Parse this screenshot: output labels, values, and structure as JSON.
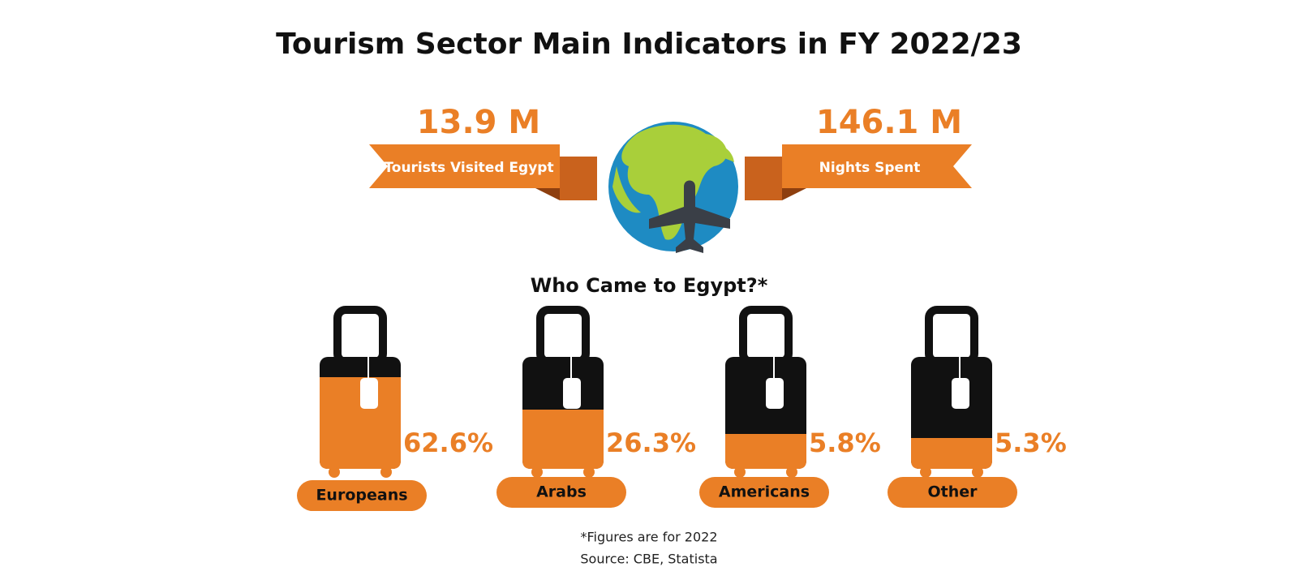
{
  "title": "Tourism Sector Main Indicators in FY 2022/23",
  "indicators": [
    {
      "value": "13.9 M",
      "label": "Tourists Visited Egypt"
    },
    {
      "value": "146.1 M",
      "label": "Nights Spent"
    }
  ],
  "section_title": "Who Came to Egypt?*",
  "groups": [
    {
      "label": "Europeans",
      "share": "62.6%"
    },
    {
      "label": "Arabs",
      "share": "26.3%"
    },
    {
      "label": "Americans",
      "share": "5.8%"
    },
    {
      "label": "Other",
      "share": "5.3%"
    }
  ],
  "footnote": "*Figures are for 2022",
  "source": "Source: CBE, Statista"
}
